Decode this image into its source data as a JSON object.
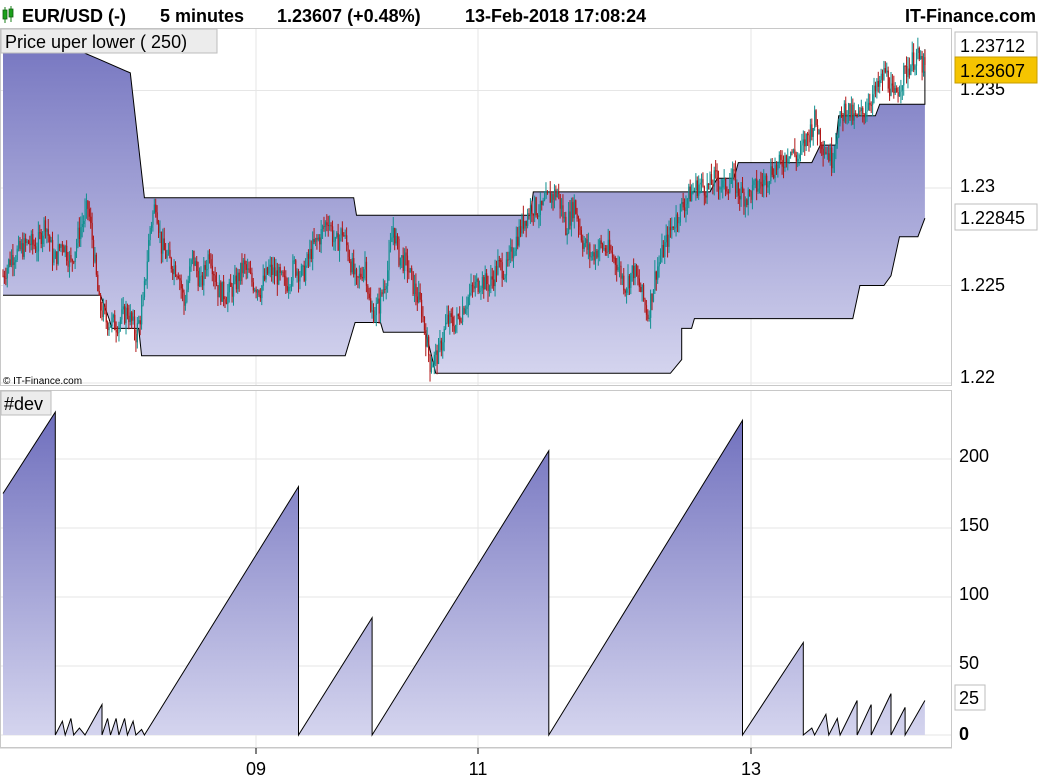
{
  "header": {
    "symbol": "EUR/USD (-)",
    "timeframe": "5 minutes",
    "price_change": "1.23607 (+0.48%)",
    "datetime": "13-Feb-2018 17:08:24",
    "brand": "IT-Finance.com",
    "icon": "candlestick-icon"
  },
  "watermark": "© IT-Finance.com",
  "price_panel": {
    "indicator_label": "Price uper lower ( 250)",
    "y_ticks": [
      "1.235",
      "1.23",
      "1.225",
      "1.22"
    ],
    "badges": {
      "upper": "1.23712",
      "last": "1.23607",
      "lower": "1.22845"
    }
  },
  "dev_panel": {
    "indicator_label": "#dev",
    "y_ticks": [
      "200",
      "150",
      "100",
      "50",
      "25",
      "0"
    ]
  },
  "x_axis": {
    "ticks": [
      "09",
      "11",
      "13"
    ]
  },
  "colors": {
    "band_top": "#6f6fbd",
    "band_bottom": "#d4d4ee",
    "candle_up": "#0f8f8f",
    "candle_down": "#b01616",
    "last_badge": "#f5c400",
    "grid": "#e6e6e6"
  },
  "chart_data": [
    {
      "type": "area",
      "name": "Price uper lower (250)",
      "x_ticks": [
        "09",
        "11",
        "13"
      ],
      "ylim": [
        1.2195,
        1.2385
      ],
      "upper_band": [
        [
          0,
          1.2388
        ],
        [
          48,
          1.2388
        ],
        [
          55,
          1.237
        ],
        [
          68,
          1.2366
        ],
        [
          90,
          1.2359
        ],
        [
          100,
          1.2295
        ],
        [
          248,
          1.2295
        ],
        [
          250,
          1.2286
        ],
        [
          373,
          1.2286
        ],
        [
          375,
          1.2298
        ],
        [
          500,
          1.2298
        ],
        [
          505,
          1.2305
        ],
        [
          517,
          1.2305
        ],
        [
          520,
          1.2313
        ],
        [
          572,
          1.2313
        ],
        [
          578,
          1.2322
        ],
        [
          589,
          1.2322
        ],
        [
          591,
          1.2337
        ],
        [
          617,
          1.2337
        ],
        [
          620,
          1.2343
        ],
        [
          652,
          1.2343
        ],
        [
          652,
          1.23712
        ]
      ],
      "lower_band": [
        [
          0,
          1.2245
        ],
        [
          69,
          1.2245
        ],
        [
          75,
          1.2233
        ],
        [
          77,
          1.2228
        ],
        [
          96,
          1.2228
        ],
        [
          98,
          1.2214
        ],
        [
          242,
          1.2214
        ],
        [
          249,
          1.2231
        ],
        [
          267,
          1.2231
        ],
        [
          269,
          1.2226
        ],
        [
          299,
          1.2226
        ],
        [
          306,
          1.2205
        ],
        [
          472,
          1.2205
        ],
        [
          480,
          1.2212
        ],
        [
          480,
          1.2228
        ],
        [
          487,
          1.2228
        ],
        [
          489,
          1.2233
        ],
        [
          601,
          1.2233
        ],
        [
          606,
          1.225
        ],
        [
          623,
          1.225
        ],
        [
          628,
          1.2255
        ],
        [
          634,
          1.2275
        ],
        [
          647,
          1.2275
        ],
        [
          652,
          1.22845
        ]
      ],
      "close": [
        [
          0,
          1.2255
        ],
        [
          6,
          1.2265
        ],
        [
          12,
          1.2268
        ],
        [
          18,
          1.2272
        ],
        [
          24,
          1.227
        ],
        [
          30,
          1.2283
        ],
        [
          36,
          1.2262
        ],
        [
          42,
          1.2273
        ],
        [
          48,
          1.2261
        ],
        [
          54,
          1.2278
        ],
        [
          60,
          1.229
        ],
        [
          63,
          1.2274
        ],
        [
          68,
          1.224
        ],
        [
          73,
          1.2232
        ],
        [
          80,
          1.223
        ],
        [
          88,
          1.2237
        ],
        [
          94,
          1.2225
        ],
        [
          99,
          1.224
        ],
        [
          104,
          1.228
        ],
        [
          108,
          1.2293
        ],
        [
          112,
          1.227
        ],
        [
          118,
          1.2262
        ],
        [
          124,
          1.2258
        ],
        [
          128,
          1.224
        ],
        [
          134,
          1.2265
        ],
        [
          140,
          1.225
        ],
        [
          146,
          1.2268
        ],
        [
          152,
          1.2248
        ],
        [
          158,
          1.2245
        ],
        [
          164,
          1.225
        ],
        [
          170,
          1.226
        ],
        [
          176,
          1.2252
        ],
        [
          182,
          1.2248
        ],
        [
          188,
          1.2258
        ],
        [
          194,
          1.2255
        ],
        [
          200,
          1.225
        ],
        [
          206,
          1.226
        ],
        [
          212,
          1.2255
        ],
        [
          218,
          1.2268
        ],
        [
          224,
          1.2275
        ],
        [
          230,
          1.2285
        ],
        [
          235,
          1.227
        ],
        [
          240,
          1.2278
        ],
        [
          245,
          1.2265
        ],
        [
          250,
          1.225
        ],
        [
          256,
          1.2262
        ],
        [
          260,
          1.2235
        ],
        [
          266,
          1.224
        ],
        [
          272,
          1.2258
        ],
        [
          276,
          1.228
        ],
        [
          280,
          1.2265
        ],
        [
          286,
          1.226
        ],
        [
          290,
          1.225
        ],
        [
          296,
          1.2238
        ],
        [
          302,
          1.221
        ],
        [
          308,
          1.2215
        ],
        [
          314,
          1.2232
        ],
        [
          320,
          1.223
        ],
        [
          326,
          1.224
        ],
        [
          332,
          1.2248
        ],
        [
          338,
          1.2253
        ],
        [
          344,
          1.225
        ],
        [
          350,
          1.226
        ],
        [
          356,
          1.2258
        ],
        [
          362,
          1.2272
        ],
        [
          368,
          1.2283
        ],
        [
          374,
          1.2291
        ],
        [
          380,
          1.2288
        ],
        [
          386,
          1.2295
        ],
        [
          392,
          1.2298
        ],
        [
          398,
          1.228
        ],
        [
          404,
          1.2292
        ],
        [
          410,
          1.2273
        ],
        [
          416,
          1.2265
        ],
        [
          422,
          1.227
        ],
        [
          428,
          1.2268
        ],
        [
          434,
          1.2262
        ],
        [
          440,
          1.225
        ],
        [
          446,
          1.2258
        ],
        [
          452,
          1.2245
        ],
        [
          456,
          1.2235
        ],
        [
          462,
          1.2258
        ],
        [
          468,
          1.227
        ],
        [
          474,
          1.2282
        ],
        [
          480,
          1.229
        ],
        [
          486,
          1.2297
        ],
        [
          492,
          1.2302
        ],
        [
          498,
          1.23
        ],
        [
          504,
          1.2305
        ],
        [
          510,
          1.23
        ],
        [
          516,
          1.2305
        ],
        [
          520,
          1.2298
        ],
        [
          526,
          1.2295
        ],
        [
          532,
          1.23
        ],
        [
          538,
          1.2303
        ],
        [
          544,
          1.231
        ],
        [
          550,
          1.2312
        ],
        [
          556,
          1.232
        ],
        [
          562,
          1.2315
        ],
        [
          568,
          1.2325
        ],
        [
          574,
          1.2335
        ],
        [
          580,
          1.2322
        ],
        [
          586,
          1.2315
        ],
        [
          590,
          1.233
        ],
        [
          596,
          1.2342
        ],
        [
          602,
          1.2335
        ],
        [
          608,
          1.2338
        ],
        [
          612,
          1.2345
        ],
        [
          618,
          1.235
        ],
        [
          624,
          1.236
        ],
        [
          630,
          1.2345
        ],
        [
          635,
          1.2355
        ],
        [
          640,
          1.2362
        ],
        [
          646,
          1.2368
        ],
        [
          652,
          1.23607
        ]
      ]
    },
    {
      "type": "area",
      "name": "#dev",
      "x_ticks": [
        "09",
        "11",
        "13"
      ],
      "ylim": [
        0,
        240
      ],
      "y_ticks": [
        200,
        150,
        100,
        50,
        25,
        0
      ],
      "values": [
        [
          0,
          175
        ],
        [
          37,
          234
        ],
        [
          37,
          0
        ],
        [
          42,
          10
        ],
        [
          44,
          0
        ],
        [
          48,
          12
        ],
        [
          50,
          0
        ],
        [
          54,
          5
        ],
        [
          58,
          0
        ],
        [
          70,
          22
        ],
        [
          70,
          0
        ],
        [
          74,
          12
        ],
        [
          76,
          0
        ],
        [
          80,
          12
        ],
        [
          82,
          0
        ],
        [
          86,
          12
        ],
        [
          88,
          0
        ],
        [
          92,
          10
        ],
        [
          94,
          0
        ],
        [
          98,
          4
        ],
        [
          100,
          0
        ],
        [
          209,
          180
        ],
        [
          209,
          0
        ],
        [
          261,
          85
        ],
        [
          261,
          0
        ],
        [
          386,
          206
        ],
        [
          386,
          0
        ],
        [
          523,
          228
        ],
        [
          523,
          0
        ],
        [
          566,
          67
        ],
        [
          566,
          0
        ],
        [
          572,
          5
        ],
        [
          574,
          0
        ],
        [
          582,
          15
        ],
        [
          584,
          0
        ],
        [
          590,
          12
        ],
        [
          592,
          0
        ],
        [
          604,
          25
        ],
        [
          604,
          0
        ],
        [
          614,
          22
        ],
        [
          614,
          0
        ],
        [
          628,
          30
        ],
        [
          628,
          0
        ],
        [
          638,
          20
        ],
        [
          638,
          0
        ],
        [
          652,
          25
        ]
      ]
    }
  ]
}
